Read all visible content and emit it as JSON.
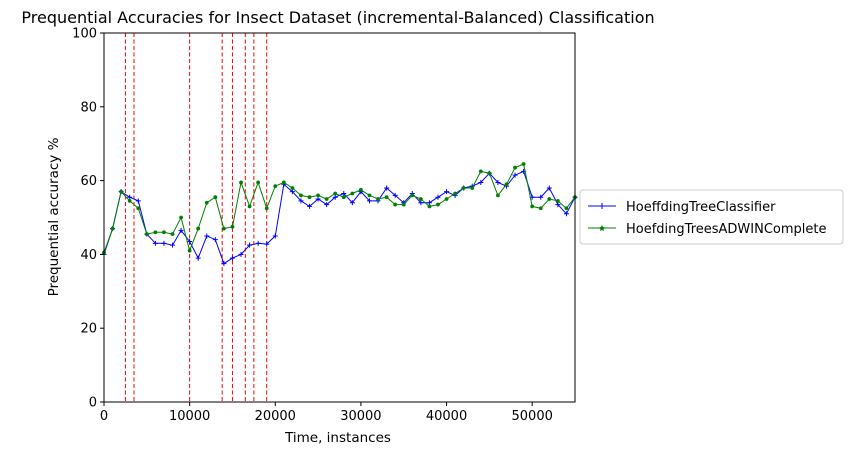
{
  "chart_data": {
    "type": "line",
    "title": "Prequential Accuracies for Insect Dataset (incremental-Balanced) Classification",
    "xlabel": "Time, instances",
    "ylabel": "Prequential accuracy %",
    "xlim": [
      0,
      55000
    ],
    "ylim": [
      0,
      100
    ],
    "xticks": [
      0,
      10000,
      20000,
      30000,
      40000,
      50000
    ],
    "yticks": [
      0,
      20,
      40,
      60,
      80,
      100
    ],
    "grid": false,
    "legend_position": "outside-right",
    "drift_lines": [
      2500,
      3500,
      10000,
      13800,
      15000,
      16500,
      17500,
      19000
    ],
    "drift_line_color": "#ff0000",
    "x": [
      0,
      1000,
      2000,
      3000,
      4000,
      5000,
      6000,
      7000,
      8000,
      9000,
      10000,
      11000,
      12000,
      13000,
      14000,
      15000,
      16000,
      17000,
      18000,
      19000,
      20000,
      21000,
      22000,
      23000,
      24000,
      25000,
      26000,
      27000,
      28000,
      29000,
      30000,
      31000,
      32000,
      33000,
      34000,
      35000,
      36000,
      37000,
      38000,
      39000,
      40000,
      41000,
      42000,
      43000,
      44000,
      45000,
      46000,
      47000,
      48000,
      49000,
      50000,
      51000,
      52000,
      53000,
      54000,
      55000
    ],
    "series": [
      {
        "name": "HoeffdingTreeClassifier",
        "color": "#0000ff",
        "marker": "plus",
        "values": [
          40.0,
          47.0,
          57.0,
          55.5,
          54.5,
          45.5,
          43.0,
          43.0,
          42.5,
          46.5,
          43.5,
          39.0,
          45.0,
          44.0,
          37.5,
          39.0,
          40.0,
          42.5,
          43.0,
          42.8,
          45.0,
          59.0,
          57.0,
          54.5,
          53.0,
          55.0,
          53.5,
          55.5,
          56.5,
          54.0,
          57.0,
          54.5,
          54.5,
          58.0,
          56.0,
          54.0,
          56.5,
          54.0,
          54.0,
          55.5,
          57.0,
          56.0,
          58.0,
          58.5,
          59.5,
          62.0,
          59.5,
          58.5,
          61.5,
          62.5,
          55.5,
          55.5,
          58.0,
          53.5,
          51.0,
          55.5
        ]
      },
      {
        "name": "HoefdingTreesADWINComplete",
        "color": "#008000",
        "marker": "star",
        "values": [
          40.5,
          47.0,
          57.0,
          54.5,
          52.5,
          45.5,
          46.0,
          46.0,
          45.5,
          50.0,
          41.0,
          47.0,
          54.0,
          55.5,
          47.0,
          47.5,
          59.5,
          53.0,
          59.5,
          52.5,
          58.5,
          59.5,
          58.0,
          56.0,
          55.5,
          56.0,
          55.0,
          56.5,
          55.5,
          56.5,
          57.5,
          56.0,
          55.0,
          55.5,
          53.5,
          53.5,
          56.0,
          55.0,
          53.0,
          53.5,
          55.0,
          56.5,
          58.0,
          58.0,
          62.5,
          62.0,
          56.0,
          59.0,
          63.5,
          64.5,
          53.0,
          52.5,
          55.0,
          54.5,
          52.5,
          55.5
        ]
      }
    ]
  }
}
